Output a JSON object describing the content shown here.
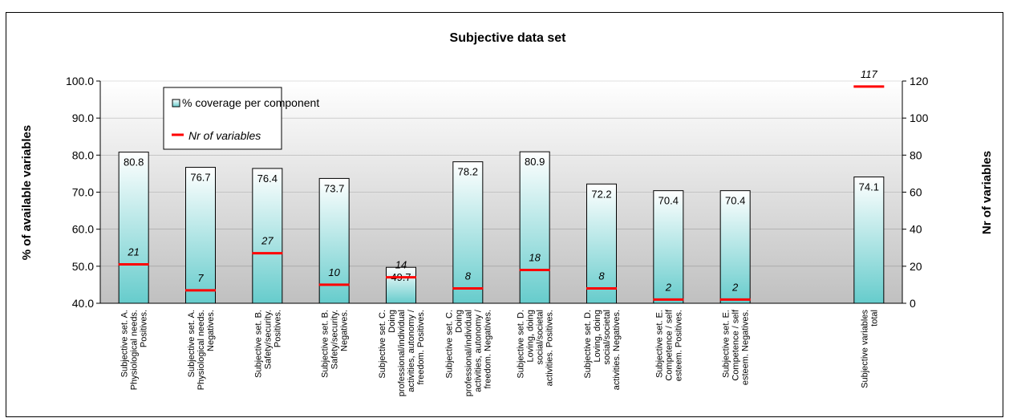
{
  "chart_data": {
    "type": "bar",
    "title": "Subjective data set",
    "ylabel": "% of available variables",
    "y2label": "Nr of variables",
    "ylim": [
      40,
      100
    ],
    "y2lim": [
      0,
      120
    ],
    "yticks": [
      "40.0",
      "50.0",
      "60.0",
      "70.0",
      "80.0",
      "90.0",
      "100.0"
    ],
    "y2ticks": [
      "0",
      "20",
      "40",
      "60",
      "80",
      "100",
      "120"
    ],
    "legend_position": "top-left",
    "colors": {
      "bar_top": "#ffffff",
      "bar_bottom": "#66cccc",
      "line": "#ff0000",
      "plot_top": "#ffffff",
      "plot_bottom": "#c0c0c0"
    },
    "categories": [
      [
        "Subjective set. A.",
        "Physiological needs.",
        "Positives."
      ],
      [
        "Subjective set. A.",
        "Physiological needs.",
        "Negatives."
      ],
      [
        "Subjective set. B.",
        "Safety/security.",
        "Positives."
      ],
      [
        "Subjective set. B.",
        "Safety/security.",
        "Negatives."
      ],
      [
        "Subjective set. C.",
        "Doing",
        "professional/individual",
        "activities, autonomy /",
        "freedom. Positives."
      ],
      [
        "Subjective set. C.",
        "Doing",
        "professional/individual",
        "activities, autonomy /",
        "freedom. Negatives."
      ],
      [
        "Subjective set. D.",
        "Loving, doing",
        "social/societal",
        "activities. Positives."
      ],
      [
        "Subjective set. D.",
        "Loving, doing",
        "social/societal",
        "activities. Negatives."
      ],
      [
        "Subjective set. E.",
        "Competence / self",
        "esteem. Positives."
      ],
      [
        "Subjective set. E.",
        "Competence / self",
        "esteem. Negatives."
      ],
      [
        ""
      ],
      [
        "Subjective variables",
        "total"
      ]
    ],
    "series": [
      {
        "name": "% coverage per component",
        "axis": "left",
        "values": [
          80.8,
          76.7,
          76.4,
          73.7,
          49.7,
          78.2,
          80.9,
          72.2,
          70.4,
          70.4,
          null,
          74.1
        ],
        "labels": [
          "80.8",
          "76.7",
          "76.4",
          "73.7",
          "49.7",
          "78.2",
          "80.9",
          "72.2",
          "70.4",
          "70.4",
          "",
          "74.1"
        ]
      },
      {
        "name": "Nr of variables",
        "axis": "right",
        "values": [
          21,
          7,
          27,
          10,
          14,
          8,
          18,
          8,
          2,
          2,
          null,
          117
        ],
        "labels": [
          "21",
          "7",
          "27",
          "10",
          "14",
          "8",
          "18",
          "8",
          "2",
          "2",
          "",
          "117"
        ]
      }
    ]
  }
}
